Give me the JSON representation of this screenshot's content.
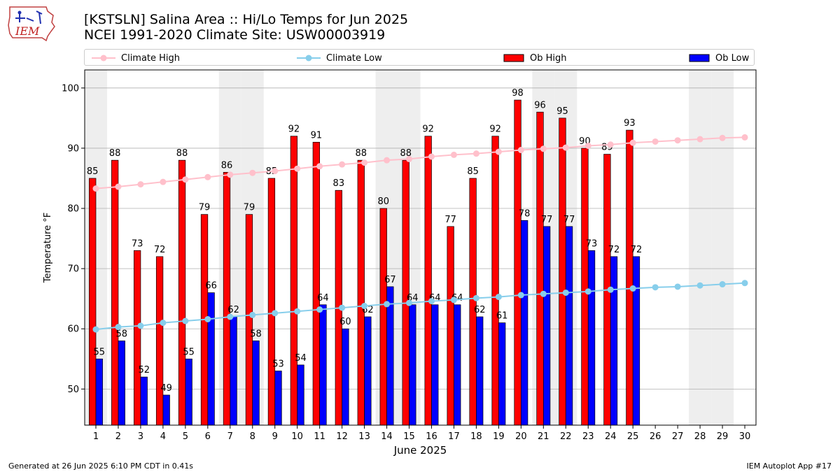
{
  "logo": {
    "text": "IEM"
  },
  "title": {
    "line1": "[KSTSLN] Salina Area :: Hi/Lo Temps for Jun 2025",
    "line2": "NCEI 1991-2020 Climate Site: USW00003919"
  },
  "legend": {
    "climate_high": "Climate High",
    "climate_low": "Climate Low",
    "ob_high": "Ob High",
    "ob_low": "Ob Low"
  },
  "footer": {
    "generated": "Generated at 26 Jun 2025 6:10 PM CDT in 0.41s",
    "app": "IEM Autoplot App #17"
  },
  "chart_data": {
    "type": "bar",
    "xlabel": "June 2025",
    "ylabel": "Temperature °F",
    "ylim": [
      44,
      103
    ],
    "yticks": [
      50,
      60,
      70,
      80,
      90,
      100
    ],
    "grid": true,
    "days": [
      1,
      2,
      3,
      4,
      5,
      6,
      7,
      8,
      9,
      10,
      11,
      12,
      13,
      14,
      15,
      16,
      17,
      18,
      19,
      20,
      21,
      22,
      23,
      24,
      25,
      26,
      27,
      28,
      29,
      30
    ],
    "weekend_days": [
      1,
      7,
      8,
      14,
      15,
      21,
      22,
      28,
      29
    ],
    "colors": {
      "ob_high": "#ff0000",
      "ob_low": "#0000ff",
      "climate_high": "#ffc0cb",
      "climate_low": "#87ceeb",
      "weekend": "#eeeeee",
      "grid": "#b0b0b0"
    },
    "series": [
      {
        "name": "Ob High",
        "kind": "bar",
        "values": [
          85,
          88,
          73,
          72,
          88,
          79,
          86,
          79,
          85,
          92,
          91,
          83,
          88,
          80,
          88,
          92,
          77,
          85,
          92,
          98,
          96,
          95,
          90,
          89,
          93
        ]
      },
      {
        "name": "Ob Low",
        "kind": "bar",
        "values": [
          55,
          58,
          52,
          49,
          55,
          66,
          62,
          58,
          53,
          54,
          64,
          60,
          62,
          67,
          64,
          64,
          64,
          62,
          61,
          78,
          77,
          77,
          73,
          72,
          72
        ]
      },
      {
        "name": "Climate High",
        "kind": "line",
        "values": [
          83.3,
          83.6,
          84.0,
          84.4,
          84.8,
          85.2,
          85.6,
          85.9,
          86.2,
          86.6,
          87.0,
          87.3,
          87.6,
          88.0,
          88.2,
          88.6,
          88.9,
          89.1,
          89.4,
          89.7,
          89.9,
          90.1,
          90.4,
          90.6,
          90.9,
          91.1,
          91.3,
          91.5,
          91.7,
          91.8
        ]
      },
      {
        "name": "Climate Low",
        "kind": "line",
        "values": [
          59.9,
          60.3,
          60.5,
          61.0,
          61.3,
          61.6,
          62.0,
          62.3,
          62.6,
          62.9,
          63.2,
          63.5,
          63.8,
          64.1,
          64.3,
          64.6,
          64.8,
          65.1,
          65.3,
          65.6,
          65.8,
          66.0,
          66.2,
          66.5,
          66.7,
          66.9,
          67.0,
          67.2,
          67.4,
          67.6
        ]
      }
    ]
  }
}
